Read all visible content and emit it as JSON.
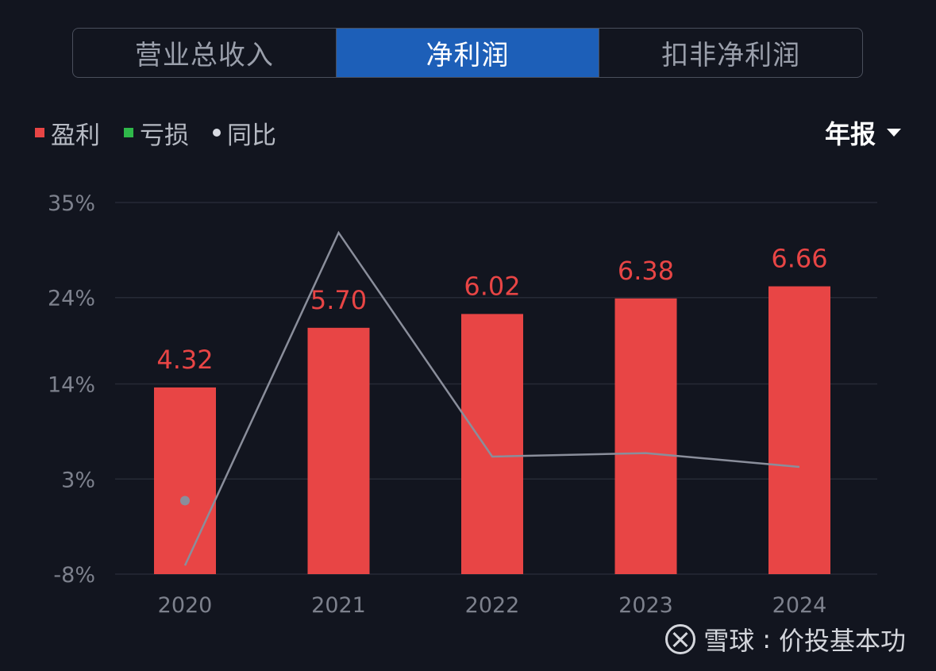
{
  "tabs": [
    {
      "label": "营业总收入",
      "active": false
    },
    {
      "label": "净利润",
      "active": true
    },
    {
      "label": "扣非净利润",
      "active": false
    }
  ],
  "legend": [
    {
      "label": "盈利",
      "color": "#e84545",
      "shape": "square"
    },
    {
      "label": "亏损",
      "color": "#2fb84a",
      "shape": "square"
    },
    {
      "label": "同比",
      "color": "#d8dbe2",
      "shape": "dot"
    }
  ],
  "period_selector": {
    "label": "年报",
    "icon": "caret-down-icon"
  },
  "watermark": {
    "brand": "雪球",
    "separator": ":",
    "author": "价投基本功",
    "icon": "xueqiu-logo-icon"
  },
  "chart_data": {
    "type": "bar",
    "categories": [
      "2020",
      "2021",
      "2022",
      "2023",
      "2024"
    ],
    "series": [
      {
        "name": "盈利",
        "kind": "bar",
        "values": [
          4.32,
          5.7,
          6.02,
          6.38,
          6.66
        ],
        "labels": [
          "4.32",
          "5.70",
          "6.02",
          "6.38",
          "6.66"
        ],
        "color": "#e84545"
      },
      {
        "name": "同比",
        "kind": "line",
        "axis": "yoy",
        "values": [
          -7,
          31.5,
          5.6,
          6.0,
          4.4
        ],
        "color": "#8a8e9b"
      }
    ],
    "yoy_axis": {
      "ticks": [
        "35%",
        "24%",
        "14%",
        "3%",
        "-8%"
      ],
      "tick_values": [
        35,
        24,
        14,
        3,
        -8
      ],
      "range": [
        -8,
        35
      ]
    },
    "value_axis_range": [
      0,
      8.6
    ],
    "extra_point": {
      "x": "2020",
      "yoy": 0.5,
      "color": "#8a8e9b"
    },
    "grid": true
  }
}
